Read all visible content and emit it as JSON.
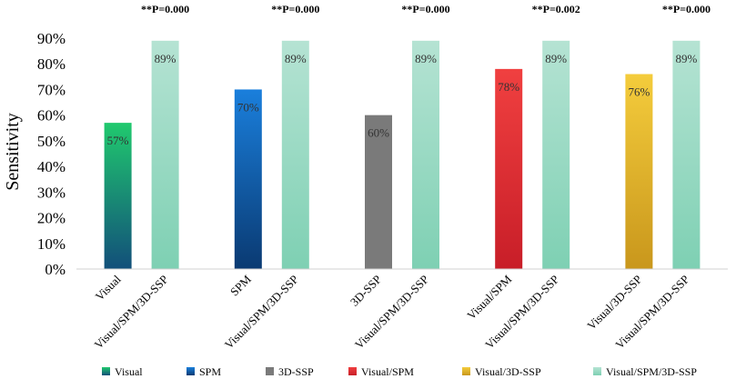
{
  "chart_data": {
    "type": "bar",
    "ylabel": "Sensitivity",
    "ylim": [
      0,
      90
    ],
    "yticks": [
      "0%",
      "10%",
      "20%",
      "30%",
      "40%",
      "50%",
      "60%",
      "70%",
      "80%",
      "90%"
    ],
    "grid": false,
    "legend_position": "bottom",
    "groups": [
      {
        "p_label": "**P=0.000",
        "bars": [
          {
            "category": "Visual",
            "value": 57,
            "label": "57%",
            "series": "Visual"
          },
          {
            "category": "Visual/SPM/3D-SSP",
            "value": 89,
            "label": "89%",
            "series": "Visual/SPM/3D-SSP"
          }
        ]
      },
      {
        "p_label": "**P=0.000",
        "bars": [
          {
            "category": "SPM",
            "value": 70,
            "label": "70%",
            "series": "SPM"
          },
          {
            "category": "Visual/SPM/3D-SSP",
            "value": 89,
            "label": "89%",
            "series": "Visual/SPM/3D-SSP"
          }
        ]
      },
      {
        "p_label": "**P=0.000",
        "bars": [
          {
            "category": "3D-SSP",
            "value": 60,
            "label": "60%",
            "series": "3D-SSP"
          },
          {
            "category": "Visual/SPM/3D-SSP",
            "value": 89,
            "label": "89%",
            "series": "Visual/SPM/3D-SSP"
          }
        ]
      },
      {
        "p_label": "**P=0.002",
        "bars": [
          {
            "category": "Visual/SPM",
            "value": 78,
            "label": "78%",
            "series": "Visual/SPM"
          },
          {
            "category": "Visual/SPM/3D-SSP",
            "value": 89,
            "label": "89%",
            "series": "Visual/SPM/3D-SSP"
          }
        ]
      },
      {
        "p_label": "**P=0.000",
        "bars": [
          {
            "category": "Visual/3D-SSP",
            "value": 76,
            "label": "76%",
            "series": "Visual/3D-SSP"
          },
          {
            "category": "Visual/SPM/3D-SSP",
            "value": 89,
            "label": "89%",
            "series": "Visual/SPM/3D-SSP"
          }
        ]
      }
    ],
    "series": [
      {
        "name": "Visual",
        "color_top": "#20c96e",
        "color_bottom": "#124f7a"
      },
      {
        "name": "SPM",
        "color_top": "#1a7fdc",
        "color_bottom": "#0a3a72"
      },
      {
        "name": "3D-SSP",
        "color_top": "#7a7a7a",
        "color_bottom": "#7a7a7a"
      },
      {
        "name": "Visual/SPM",
        "color_top": "#f04040",
        "color_bottom": "#c81e28"
      },
      {
        "name": "Visual/3D-SSP",
        "color_top": "#f4cc3c",
        "color_bottom": "#c9971c"
      },
      {
        "name": "Visual/SPM/3D-SSP",
        "color_top": "#b5e3d3",
        "color_bottom": "#7ed0b3"
      }
    ]
  }
}
